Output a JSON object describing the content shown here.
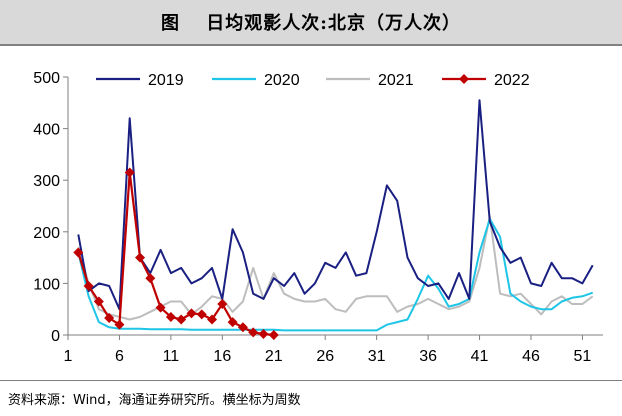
{
  "figure": {
    "title": "图　 日均观影人次:北京（万人次）",
    "source": "资料来源：Wind，海通证券研究所。横坐标为周数"
  },
  "chart_data": {
    "type": "line",
    "ylim": [
      0,
      500
    ],
    "xlim": [
      1,
      53
    ],
    "yticks": [
      0,
      100,
      200,
      300,
      400,
      500
    ],
    "xticks": [
      1,
      6,
      11,
      16,
      21,
      26,
      31,
      36,
      41,
      46,
      51
    ],
    "grid": false,
    "legend_position": "top",
    "series": [
      {
        "name": "2019",
        "color": "#1a2082",
        "marker": "none",
        "x": [
          2,
          3,
          4,
          5,
          6,
          7,
          8,
          9,
          10,
          11,
          12,
          13,
          14,
          15,
          16,
          17,
          18,
          19,
          20,
          21,
          22,
          23,
          24,
          25,
          26,
          27,
          28,
          29,
          30,
          31,
          32,
          33,
          34,
          35,
          36,
          37,
          38,
          39,
          40,
          41,
          42,
          43,
          44,
          45,
          46,
          47,
          48,
          49,
          50,
          51,
          52
        ],
        "values": [
          195,
          85,
          100,
          95,
          50,
          420,
          150,
          120,
          165,
          120,
          130,
          100,
          110,
          130,
          70,
          205,
          160,
          80,
          70,
          110,
          95,
          120,
          80,
          100,
          140,
          130,
          160,
          115,
          120,
          200,
          290,
          260,
          150,
          110,
          95,
          100,
          70,
          120,
          70,
          455,
          220,
          170,
          140,
          150,
          100,
          95,
          140,
          110,
          110,
          100,
          135
        ]
      },
      {
        "name": "2020",
        "color": "#1ec5e6",
        "marker": "none",
        "x": [
          2,
          3,
          4,
          5,
          6,
          7,
          8,
          9,
          10,
          11,
          12,
          13,
          14,
          15,
          16,
          17,
          18,
          19,
          20,
          21,
          22,
          23,
          24,
          25,
          26,
          27,
          28,
          29,
          30,
          31,
          32,
          33,
          34,
          35,
          36,
          37,
          38,
          39,
          40,
          41,
          42,
          43,
          44,
          45,
          46,
          47,
          48,
          49,
          50,
          51,
          52
        ],
        "values": [
          160,
          75,
          25,
          15,
          12,
          12,
          12,
          11,
          11,
          11,
          11,
          10,
          10,
          10,
          10,
          10,
          10,
          10,
          10,
          10,
          9,
          9,
          9,
          9,
          9,
          9,
          9,
          9,
          9,
          9,
          20,
          25,
          30,
          70,
          115,
          90,
          55,
          60,
          70,
          160,
          225,
          190,
          80,
          65,
          55,
          50,
          50,
          65,
          72,
          75,
          82
        ]
      },
      {
        "name": "2021",
        "color": "#bdbdbd",
        "marker": "none",
        "x": [
          2,
          3,
          4,
          5,
          6,
          7,
          8,
          9,
          10,
          11,
          12,
          13,
          14,
          15,
          16,
          17,
          18,
          19,
          20,
          21,
          22,
          23,
          24,
          25,
          26,
          27,
          28,
          29,
          30,
          31,
          32,
          33,
          34,
          35,
          36,
          37,
          38,
          39,
          40,
          41,
          42,
          43,
          44,
          45,
          46,
          47,
          48,
          49,
          50,
          51,
          52
        ],
        "values": [
          170,
          100,
          50,
          40,
          35,
          30,
          35,
          45,
          55,
          65,
          65,
          40,
          55,
          75,
          70,
          45,
          65,
          130,
          70,
          120,
          80,
          70,
          65,
          65,
          70,
          50,
          45,
          70,
          75,
          75,
          75,
          45,
          55,
          60,
          70,
          60,
          50,
          55,
          65,
          130,
          230,
          80,
          75,
          80,
          60,
          40,
          65,
          75,
          60,
          60,
          75
        ]
      },
      {
        "name": "2022",
        "color": "#c00000",
        "marker": "diamond",
        "x": [
          2,
          3,
          4,
          5,
          6,
          7,
          8,
          9,
          10,
          11,
          12,
          13,
          14,
          15,
          16,
          17,
          18,
          19,
          20,
          21
        ],
        "values": [
          160,
          95,
          65,
          33,
          20,
          315,
          150,
          110,
          53,
          35,
          30,
          42,
          40,
          30,
          60,
          25,
          15,
          5,
          2,
          0
        ]
      }
    ]
  }
}
